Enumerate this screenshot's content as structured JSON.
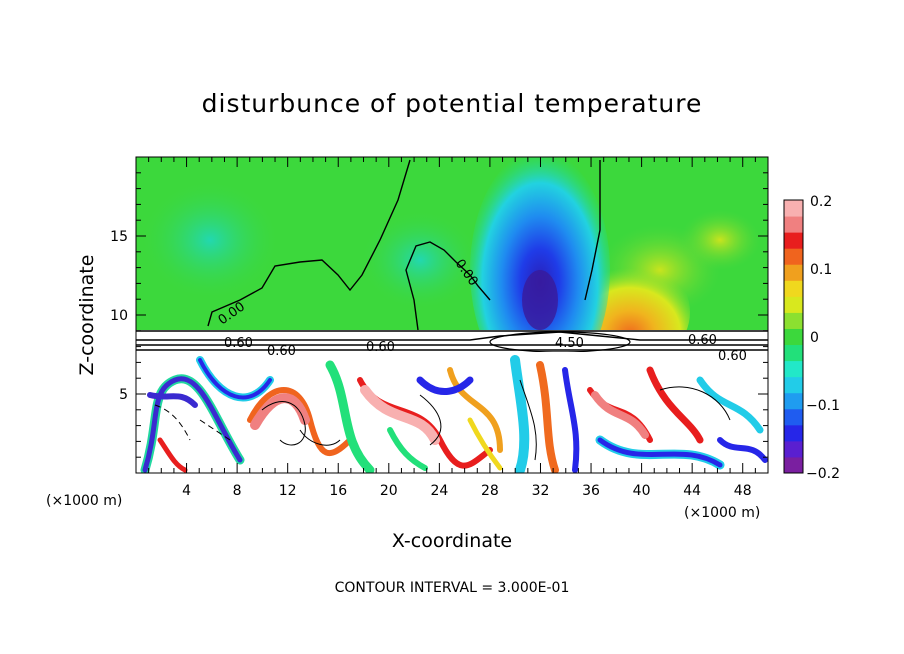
{
  "chart_data": {
    "type": "heatmap",
    "title": "disturbunce of potential temperature",
    "xlabel": "X-coordinate",
    "ylabel": "Z-coordinate",
    "x_unit": "(×1000 m)",
    "x_unit_right": "(×1000 m)",
    "xlim": [
      0,
      50
    ],
    "ylim": [
      0,
      20
    ],
    "xticks": [
      "4",
      "8",
      "12",
      "16",
      "20",
      "24",
      "28",
      "32",
      "36",
      "40",
      "44",
      "48"
    ],
    "yticks": [
      "5",
      "10",
      "15"
    ],
    "colorbar": {
      "range": [
        -0.2,
        0.2
      ],
      "tick_labels": [
        "0.2",
        "0.1",
        "0",
        "−0.1",
        "−0.2"
      ],
      "colors": [
        "#7a1fa0",
        "#5a1fd0",
        "#2626e8",
        "#1f5cf0",
        "#1f9cf0",
        "#22cce8",
        "#22e8c8",
        "#22e07a",
        "#3cd83c",
        "#8ce030",
        "#d8e81e",
        "#f0d81e",
        "#f0a01e",
        "#f0641e",
        "#e81e1e",
        "#f08080",
        "#f8b0b0"
      ]
    },
    "contour_labels": [
      "0.00",
      "0.00",
      "0.60",
      "0.60",
      "0.60",
      "0.60",
      "0.60",
      "4.50"
    ],
    "annotation": "CONTOUR INTERVAL = 3.000E-01"
  }
}
